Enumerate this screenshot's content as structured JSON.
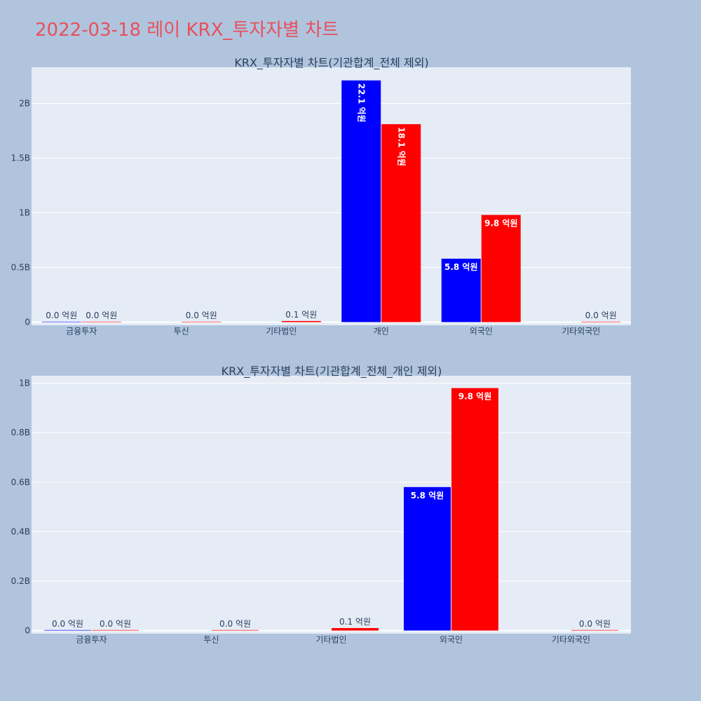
{
  "page": {
    "title": "2022-03-18 레이 KRX_투자자별 차트",
    "background": "#b0c4de",
    "title_color": "#e8505b",
    "plot_background": "#e5ecf6"
  },
  "colors": {
    "series_a": "#0000ff",
    "series_b": "#ff0000"
  },
  "chart_data": [
    {
      "type": "bar",
      "title": "KRX_투자자별 차트(기관합계_전체 제외)",
      "categories": [
        "금융투자",
        "투신",
        "기타법인",
        "개인",
        "외국인",
        "기타외국인"
      ],
      "series": [
        {
          "color": "#0000ff",
          "values": [
            0.002,
            null,
            null,
            2.21,
            0.58,
            null
          ],
          "labels": [
            "0.0 억원",
            "",
            "",
            "22.1 억원",
            "5.8 억원",
            ""
          ]
        },
        {
          "color": "#ff0000",
          "values": [
            0.002,
            0.002,
            0.01,
            1.81,
            0.98,
            0.002
          ],
          "labels": [
            "0.0 억원",
            "0.0 억원",
            "0.1 억원",
            "18.1 억원",
            "9.8 억원",
            "0.0 억원"
          ]
        }
      ],
      "yticks": [
        0,
        0.5,
        1,
        1.5,
        2
      ],
      "ytick_labels": [
        "0",
        "0.5B",
        "1B",
        "1.5B",
        "2B"
      ],
      "ylim": [
        0,
        2.33
      ]
    },
    {
      "type": "bar",
      "title": "KRX_투자자별 차트(기관합계_전체_개인 제외)",
      "categories": [
        "금융투자",
        "투신",
        "기타법인",
        "외국인",
        "기타외국인"
      ],
      "series": [
        {
          "color": "#0000ff",
          "values": [
            0.002,
            null,
            null,
            0.58,
            null
          ],
          "labels": [
            "0.0 억원",
            "",
            "",
            "5.8 억원",
            ""
          ]
        },
        {
          "color": "#ff0000",
          "values": [
            0.002,
            0.002,
            0.01,
            0.98,
            0.002
          ],
          "labels": [
            "0.0 억원",
            "0.0 억원",
            "0.1 억원",
            "9.8 억원",
            "0.0 억원"
          ]
        }
      ],
      "yticks": [
        0,
        0.2,
        0.4,
        0.6,
        0.8,
        1
      ],
      "ytick_labels": [
        "0",
        "0.2B",
        "0.4B",
        "0.6B",
        "0.8B",
        "1B"
      ],
      "ylim": [
        0,
        1.03
      ]
    }
  ]
}
